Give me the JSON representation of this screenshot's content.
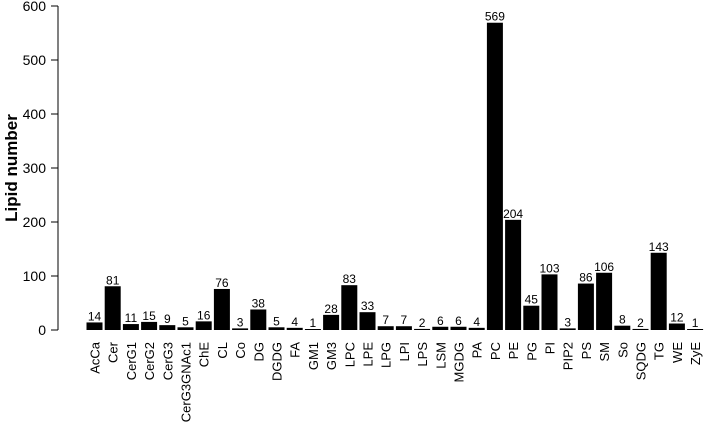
{
  "chart_data": {
    "type": "bar",
    "title": "",
    "xlabel": "",
    "ylabel": "Lipid number",
    "ylim": [
      0,
      600
    ],
    "yticks": [
      0,
      100,
      200,
      300,
      400,
      500,
      600
    ],
    "grid": false,
    "bar_color": "#000000",
    "categories": [
      "AcCa",
      "Cer",
      "CerG1",
      "CerG2",
      "CerG3",
      "CerG3GNAc1",
      "ChE",
      "CL",
      "Co",
      "DG",
      "DGDG",
      "FA",
      "GM1",
      "GM3",
      "LPC",
      "LPE",
      "LPG",
      "LPI",
      "LPS",
      "LSM",
      "MGDG",
      "PA",
      "PC",
      "PE",
      "PG",
      "PI",
      "PIP2",
      "PS",
      "SM",
      "So",
      "SQDG",
      "TG",
      "WE",
      "ZyE"
    ],
    "values": [
      14,
      81,
      11,
      15,
      9,
      5,
      16,
      76,
      3,
      38,
      5,
      4,
      1,
      28,
      83,
      33,
      7,
      7,
      2,
      6,
      6,
      4,
      569,
      204,
      45,
      103,
      3,
      86,
      106,
      8,
      2,
      143,
      12,
      1
    ]
  }
}
